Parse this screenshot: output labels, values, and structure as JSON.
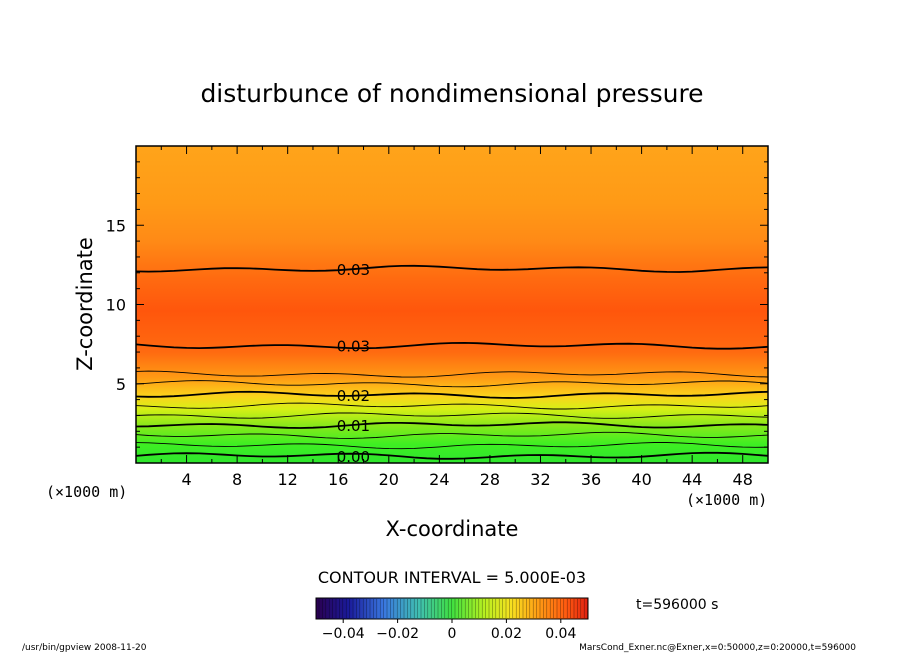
{
  "chart_data": {
    "type": "heatmap",
    "title": "disturbunce of nondimensional pressure",
    "xlabel": "X-coordinate",
    "ylabel": "Z-coordinate",
    "x_unit": "(×1000 m)",
    "z_unit": "(×1000 m)",
    "xlim": [
      0,
      50
    ],
    "ylim": [
      0,
      20
    ],
    "x_ticks": [
      4,
      8,
      12,
      16,
      20,
      24,
      28,
      32,
      36,
      40,
      44,
      48
    ],
    "y_ticks": [
      5,
      10,
      15
    ],
    "contour_labels": [
      {
        "text": "0.03",
        "x": 17.2,
        "z": 12.25
      },
      {
        "text": "0.03",
        "x": 17.2,
        "z": 7.4
      },
      {
        "text": "0.02",
        "x": 17.2,
        "z": 4.3
      },
      {
        "text": "0.01",
        "x": 17.2,
        "z": 2.4
      },
      {
        "text": "0.00",
        "x": 17.2,
        "z": 0.45
      }
    ],
    "contour_interval_text": "CONTOUR INTERVAL = 5.000E-03",
    "colorbar": {
      "range": [
        -0.05,
        0.05
      ],
      "tick_values": [
        -0.04,
        -0.02,
        0,
        0.02,
        0.04
      ],
      "tick_labels": [
        "−0.04",
        "−0.02",
        "0",
        "0.02",
        "0.04"
      ]
    },
    "time_label": "t=596000 s"
  },
  "footer": {
    "left": "/usr/bin/gpview   2008-11-20",
    "right": "MarsCond_Exner.nc@Exner,x=0:50000,z=0:20000,t=596000"
  }
}
